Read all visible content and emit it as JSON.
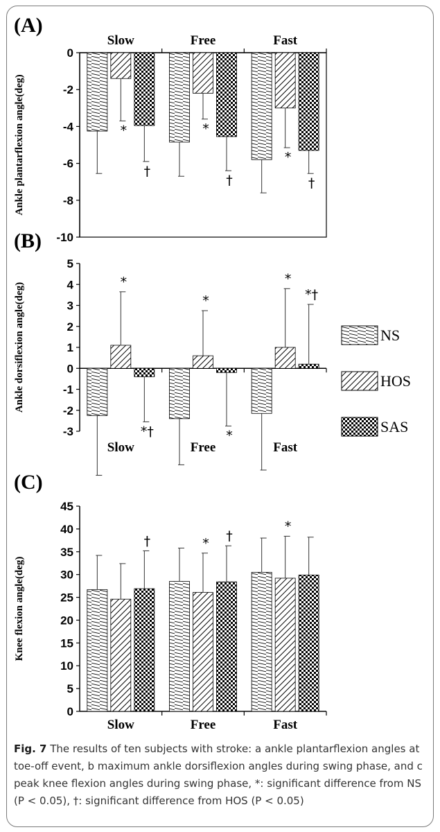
{
  "figure": {
    "caption_label": "Fig. 7",
    "caption_text": " The results of ten subjects with stroke: a ankle plantarflexion angles at toe-off event, b maximum ankle dorsiflexion angles during swing phase, and c peak knee flexion angles during swing phase, *: significant difference from NS (P < 0.05), †: significant difference from HOS (P < 0.05)"
  },
  "legend": {
    "entries": [
      {
        "name": "NS",
        "pattern": "horizontal-hatch"
      },
      {
        "name": "HOS",
        "pattern": "diagonal-hatch"
      },
      {
        "name": "SAS",
        "pattern": "checkerboard"
      }
    ]
  },
  "chart_data": [
    {
      "panel": "(A)",
      "type": "bar",
      "title": "",
      "xlabel": "",
      "ylabel": "Ankle plantarflexion  angle(deg)",
      "categories": [
        "Slow",
        "Free",
        "Fast"
      ],
      "category_labels_position": "top",
      "ylim": [
        -10,
        0
      ],
      "yticks": [
        0,
        -2,
        -4,
        -6,
        -8,
        -10
      ],
      "series": [
        {
          "name": "NS",
          "values": [
            -4.25,
            -4.85,
            -5.8
          ],
          "errors": [
            2.3,
            1.85,
            1.8
          ]
        },
        {
          "name": "HOS",
          "values": [
            -1.4,
            -2.2,
            -3.0
          ],
          "errors": [
            2.3,
            1.4,
            2.15
          ]
        },
        {
          "name": "SAS",
          "values": [
            -3.95,
            -4.55,
            -5.3
          ],
          "errors": [
            1.95,
            1.85,
            1.25
          ]
        }
      ],
      "annotations": [
        {
          "category": "Slow",
          "series": "HOS",
          "text": "*"
        },
        {
          "category": "Slow",
          "series": "SAS",
          "text": "†"
        },
        {
          "category": "Free",
          "series": "HOS",
          "text": "*"
        },
        {
          "category": "Free",
          "series": "SAS",
          "text": "†"
        },
        {
          "category": "Fast",
          "series": "HOS",
          "text": "*"
        },
        {
          "category": "Fast",
          "series": "SAS",
          "text": "†"
        }
      ]
    },
    {
      "panel": "(B)",
      "type": "bar",
      "title": "",
      "xlabel": "",
      "ylabel": "Ankle dorsiflexion angle(deg)",
      "categories": [
        "Slow",
        "Free",
        "Fast"
      ],
      "category_labels_position": "bottom",
      "ylim": [
        -3,
        5
      ],
      "yticks": [
        -3,
        -2,
        -1,
        0,
        1,
        2,
        3,
        4,
        5
      ],
      "series": [
        {
          "name": "NS",
          "values": [
            -2.25,
            -2.4,
            -2.15
          ],
          "errors": [
            2.85,
            2.2,
            2.7
          ]
        },
        {
          "name": "HOS",
          "values": [
            1.1,
            0.6,
            1.0
          ],
          "errors": [
            2.55,
            2.15,
            2.8
          ]
        },
        {
          "name": "SAS",
          "values": [
            -0.4,
            -0.2,
            0.2
          ],
          "errors": [
            2.15,
            2.55,
            2.85
          ]
        }
      ],
      "annotations": [
        {
          "category": "Slow",
          "series": "HOS",
          "text": "*"
        },
        {
          "category": "Slow",
          "series": "SAS",
          "text": "*†"
        },
        {
          "category": "Free",
          "series": "HOS",
          "text": "*"
        },
        {
          "category": "Free",
          "series": "SAS",
          "text": "*"
        },
        {
          "category": "Fast",
          "series": "HOS",
          "text": "*"
        },
        {
          "category": "Fast",
          "series": "SAS",
          "text": "*†"
        }
      ]
    },
    {
      "panel": "(C)",
      "type": "bar",
      "title": "",
      "xlabel": "",
      "ylabel": "Knee flexion angle(deg)",
      "categories": [
        "Slow",
        "Free",
        "Fast"
      ],
      "category_labels_position": "bottom",
      "ylim": [
        0,
        45
      ],
      "yticks": [
        0,
        5,
        10,
        15,
        20,
        25,
        30,
        35,
        40,
        45
      ],
      "series": [
        {
          "name": "NS",
          "values": [
            26.7,
            28.5,
            30.5
          ],
          "errors": [
            7.5,
            7.3,
            7.5
          ]
        },
        {
          "name": "HOS",
          "values": [
            24.6,
            26.1,
            29.2
          ],
          "errors": [
            7.8,
            8.6,
            9.2
          ]
        },
        {
          "name": "SAS",
          "values": [
            26.9,
            28.4,
            29.9
          ],
          "errors": [
            8.3,
            7.9,
            8.3
          ]
        }
      ],
      "annotations": [
        {
          "category": "Slow",
          "series": "SAS",
          "text": "†"
        },
        {
          "category": "Free",
          "series": "HOS",
          "text": "*"
        },
        {
          "category": "Free",
          "series": "SAS",
          "text": "†"
        },
        {
          "category": "Fast",
          "series": "HOS",
          "text": "*"
        }
      ]
    }
  ]
}
